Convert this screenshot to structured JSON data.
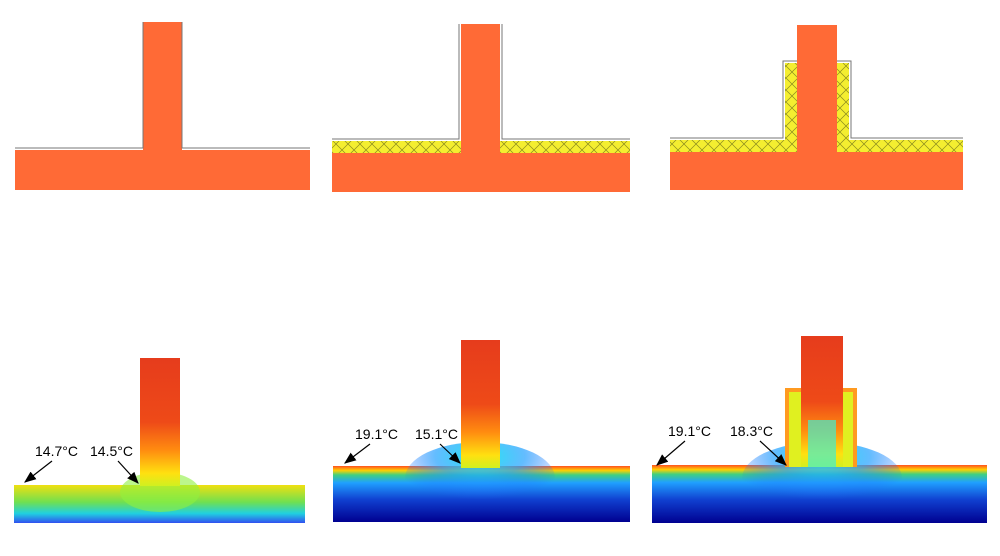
{
  "panels": [
    {
      "annotations": [
        {
          "text": "14.7°C"
        },
        {
          "text": "14.5°C"
        }
      ]
    },
    {
      "annotations": [
        {
          "text": "19.1°C"
        },
        {
          "text": "15.1°C"
        }
      ]
    },
    {
      "annotations": [
        {
          "text": "19.1°C"
        },
        {
          "text": "18.3°C"
        }
      ]
    }
  ]
}
